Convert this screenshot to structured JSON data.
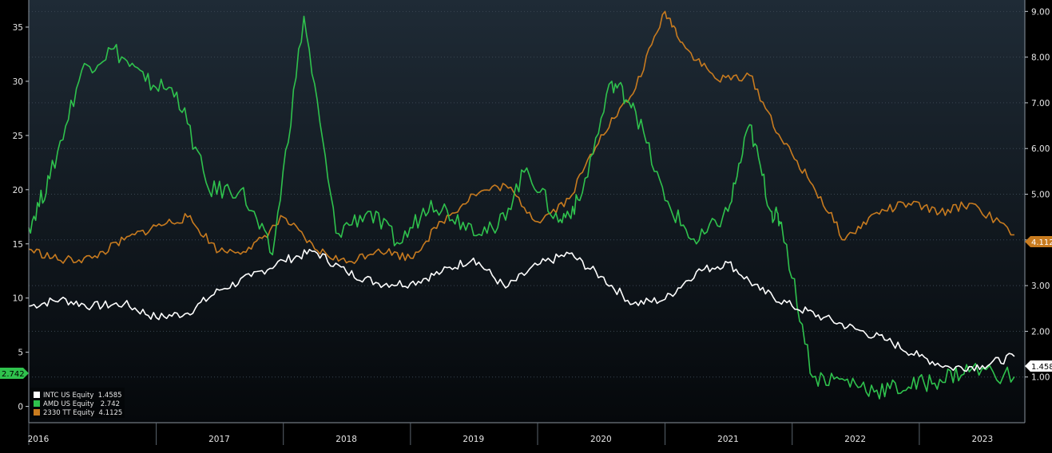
{
  "chart_data": {
    "type": "line",
    "title": "",
    "x_axis": {
      "type": "date",
      "ticks": [
        "2016",
        "2017",
        "2018",
        "2019",
        "2020",
        "2021",
        "2022",
        "2023"
      ],
      "range": [
        "2016-01-01",
        "2023-10-31"
      ]
    },
    "y_left": {
      "ticks": [
        0,
        5,
        10,
        15,
        20,
        25,
        30,
        35
      ],
      "range": [
        -1.5,
        37.5
      ]
    },
    "y_right": {
      "ticks": [
        "1.00",
        "2.00",
        "3.00",
        "4.00",
        "5.00",
        "6.00",
        "7.00",
        "8.00",
        "9.00"
      ],
      "range": [
        0.0,
        9.25
      ]
    },
    "grid": true,
    "legend_position": "bottom-left",
    "legend": [
      "INTC US Equity  1.4585",
      "AMD US Equity   2.742",
      "2330 TT Equity  4.1125"
    ],
    "badges": {
      "intc": "1.458",
      "amd": "2.742",
      "tsmc": "4.112"
    },
    "series": [
      {
        "name": "INTC US Equity",
        "axis": "right",
        "last": 1.4585,
        "color": "#ffffff",
        "x": [
          "2016-01",
          "2016-04",
          "2016-07",
          "2016-10",
          "2017-01",
          "2017-04",
          "2017-07",
          "2017-10",
          "2018-01",
          "2018-04",
          "2018-07",
          "2018-10",
          "2019-01",
          "2019-04",
          "2019-07",
          "2019-10",
          "2020-01",
          "2020-04",
          "2020-07",
          "2020-10",
          "2021-01",
          "2021-04",
          "2021-07",
          "2021-10",
          "2022-01",
          "2022-04",
          "2022-07",
          "2022-10",
          "2023-01",
          "2023-04",
          "2023-07",
          "2023-10"
        ],
        "y": [
          2.55,
          2.7,
          2.55,
          2.6,
          2.3,
          2.4,
          2.9,
          3.2,
          3.55,
          3.75,
          3.3,
          3.05,
          3.05,
          3.3,
          3.6,
          2.95,
          3.45,
          3.7,
          3.2,
          2.6,
          2.7,
          3.3,
          3.5,
          2.9,
          2.55,
          2.3,
          2.05,
          1.8,
          1.45,
          1.2,
          1.25,
          1.45
        ]
      },
      {
        "name": "AMD US Equity",
        "axis": "left",
        "last": 2.742,
        "color": "#2fc24d",
        "x": [
          "2016-01",
          "2016-03",
          "2016-06",
          "2016-09",
          "2016-12",
          "2017-03",
          "2017-06",
          "2017-09",
          "2017-12",
          "2018-03",
          "2018-06",
          "2018-09",
          "2018-12",
          "2019-03",
          "2019-06",
          "2019-09",
          "2019-12",
          "2020-03",
          "2020-05",
          "2020-08",
          "2020-10",
          "2021-01",
          "2021-04",
          "2021-07",
          "2021-09",
          "2021-11",
          "2021-12",
          "2022-03",
          "2022-06",
          "2022-09",
          "2022-12",
          "2023-03",
          "2023-06",
          "2023-10"
        ],
        "y": [
          16.5,
          21,
          31,
          33,
          30,
          29,
          20,
          20,
          14,
          36,
          16,
          18,
          15,
          19,
          17,
          16,
          22,
          17,
          19,
          30,
          28,
          19,
          15,
          18,
          26,
          18,
          17,
          2.7,
          2.4,
          1.5,
          1.8,
          2.5,
          3.5,
          2.742
        ]
      },
      {
        "name": "2330 TT Equity",
        "axis": "right",
        "last": 4.1125,
        "color": "#c87b1f",
        "x": [
          "2016-01",
          "2016-04",
          "2016-07",
          "2016-10",
          "2017-01",
          "2017-04",
          "2017-07",
          "2017-10",
          "2018-01",
          "2018-04",
          "2018-07",
          "2018-10",
          "2019-01",
          "2019-04",
          "2019-07",
          "2019-10",
          "2020-01",
          "2020-04",
          "2020-07",
          "2020-10",
          "2021-01",
          "2021-03",
          "2021-06",
          "2021-09",
          "2021-12",
          "2022-03",
          "2022-06",
          "2022-09",
          "2022-12",
          "2023-03",
          "2023-06",
          "2023-10"
        ],
        "y": [
          3.8,
          3.55,
          3.6,
          4.0,
          4.3,
          4.5,
          3.75,
          3.8,
          4.5,
          3.8,
          3.5,
          3.8,
          3.6,
          4.4,
          5.0,
          5.2,
          4.4,
          4.9,
          6.3,
          7.2,
          9.0,
          8.2,
          7.5,
          7.6,
          6.2,
          5.2,
          4.0,
          4.6,
          4.8,
          4.6,
          4.8,
          4.1125
        ]
      }
    ]
  }
}
